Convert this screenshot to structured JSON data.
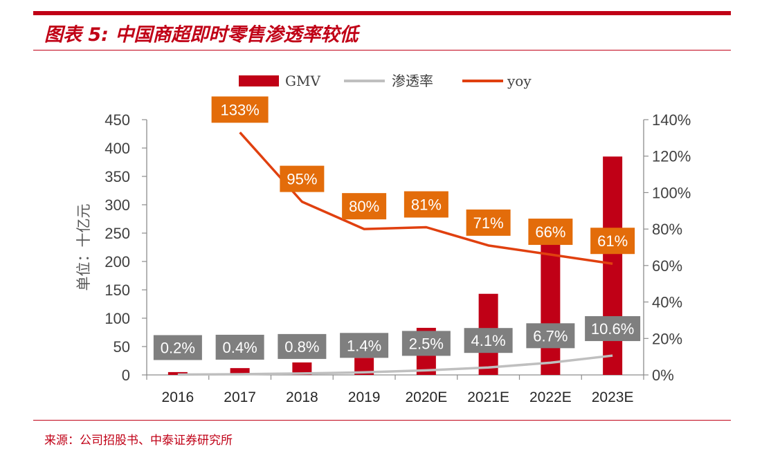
{
  "figure": {
    "title": "图表 5:  中国商超即时零售渗透率较低",
    "source": "来源：公司招股书、中泰证券研究所"
  },
  "colors": {
    "accent": "#c00016",
    "bar": "#c00016",
    "penetration_line": "#bfbfbf",
    "yoy_line": "#e0400f",
    "yoy_label_bg": "#e36c0a",
    "pen_label_bg": "#7f7f7f"
  },
  "chart_data": {
    "type": "bar",
    "categories": [
      "2016",
      "2017",
      "2018",
      "2019",
      "2020E",
      "2021E",
      "2022E",
      "2023E"
    ],
    "ylabel": "单位：十亿元",
    "ylim": [
      0,
      450
    ],
    "y_ticks": [
      0,
      50,
      100,
      150,
      200,
      250,
      300,
      350,
      400,
      450
    ],
    "y_ticks_text": [
      "0",
      "50",
      "100",
      "150",
      "200",
      "250",
      "300",
      "350",
      "400",
      "450"
    ],
    "y2lim": [
      0,
      140
    ],
    "y2_ticks": [
      0,
      20,
      40,
      60,
      80,
      100,
      120,
      140
    ],
    "y2_ticks_text": [
      "0%",
      "20%",
      "40%",
      "60%",
      "80%",
      "100%",
      "120%",
      "140%"
    ],
    "series": [
      {
        "name": "GMV",
        "kind": "bar",
        "axis": "left",
        "values": [
          5,
          12,
          22,
          30,
          83,
          143,
          237,
          385
        ]
      },
      {
        "name": "渗透率",
        "kind": "line",
        "axis": "right",
        "values": [
          0.2,
          0.4,
          0.8,
          1.4,
          2.5,
          4.1,
          6.7,
          10.6
        ],
        "labels": [
          "0.2%",
          "0.4%",
          "0.8%",
          "1.4%",
          "2.5%",
          "4.1%",
          "6.7%",
          "10.6%"
        ]
      },
      {
        "name": "yoy",
        "kind": "line",
        "axis": "right",
        "values": [
          null,
          133,
          95,
          80,
          81,
          71,
          66,
          61
        ],
        "labels": [
          "",
          "133%",
          "95%",
          "80%",
          "81%",
          "71%",
          "66%",
          "61%"
        ]
      }
    ],
    "legend": {
      "position": "top-center",
      "entries": [
        "GMV",
        "渗透率",
        "yoy"
      ]
    }
  }
}
